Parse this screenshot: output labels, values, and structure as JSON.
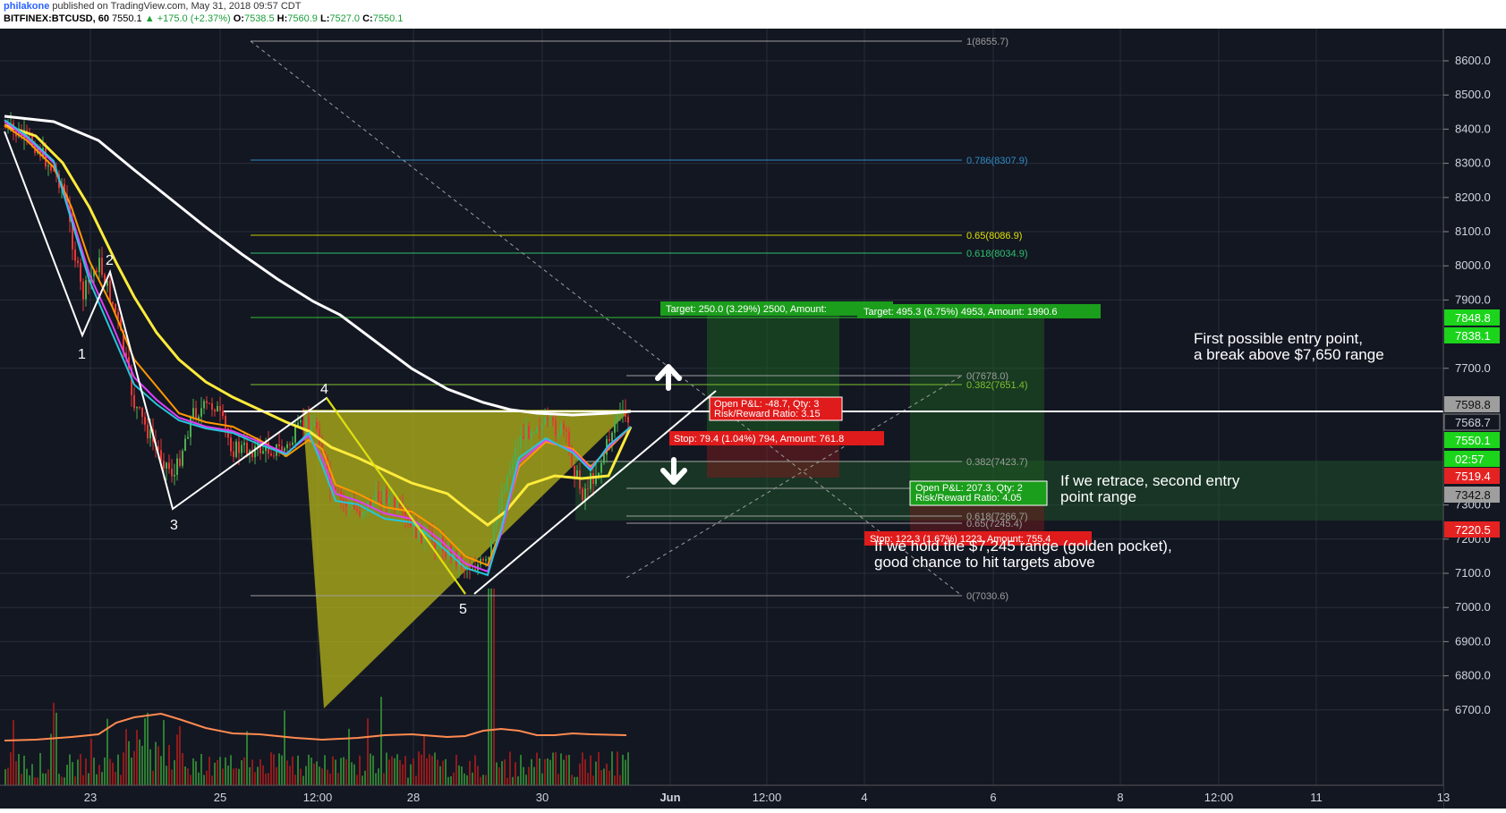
{
  "header": {
    "author": "philakone",
    "published": "published on TradingView.com, May 31, 2018 09:57 CDT",
    "symbol": "BITFINEX:BTCUSD, 60",
    "last": "7550.1",
    "change": "+175.0 (+2.37%)",
    "o_label": "O:",
    "o_value": "7538.5",
    "h_label": "H:",
    "h_value": "7560.9",
    "l_label": "L:",
    "l_value": "7527.0",
    "c_label": "C:",
    "c_value": "7550.1"
  },
  "colors": {
    "background": "#131722",
    "axis_bg": "#131722",
    "grid": "#2a2e39",
    "up": "#4caf50",
    "down": "#e53935",
    "ma_white": "#ffffff",
    "ma_yellow": "#ffeb3b",
    "triangle_fill": "#b5b51a",
    "target_bg": "#1b9e1b",
    "stop_bg": "#e01b1b",
    "price_green": "#1bd41b",
    "price_red": "#e52222"
  },
  "axis": {
    "y_ticks": [
      "8600.0",
      "8500.0",
      "8400.0",
      "8300.0",
      "8200.0",
      "8100.0",
      "8000.0",
      "7900.0",
      "7700.0",
      "7300.0",
      "7200.0",
      "7100.0",
      "7000.0",
      "6900.0",
      "6800.0",
      "6700.0"
    ],
    "x_ticks": [
      "23",
      "25",
      "12:00",
      "28",
      "30",
      "Jun",
      "12:00",
      "4",
      "6",
      "8",
      "12:00",
      "11",
      "13"
    ],
    "price_tags": [
      {
        "label": "7848.8",
        "kind": "green"
      },
      {
        "label": "7838.1",
        "kind": "green"
      },
      {
        "label": "7598.8",
        "kind": "grey"
      },
      {
        "label": "7568.7",
        "kind": "dark"
      },
      {
        "label": "7550.1",
        "kind": "green"
      },
      {
        "label": "02:57",
        "kind": "green"
      },
      {
        "label": "7519.4",
        "kind": "red"
      },
      {
        "label": "7342.8",
        "kind": "grey"
      },
      {
        "label": "7220.5",
        "kind": "red"
      }
    ]
  },
  "fib": {
    "f1": "1(8655.7)",
    "f786": "0.786(8307.9)",
    "f65": "0.65(8086.9)",
    "f618": "0.618(8034.9)",
    "f0_top": "0(7678.0)",
    "f382_top": "0.382(7651.4)",
    "f382_mid": "0.382(7423.7)",
    "f618_mid": "0.618(7266.7)",
    "f65_mid": "0.65(7245.4)",
    "f0_bottom": "0(7030.6)"
  },
  "waves": [
    "1",
    "2",
    "3",
    "4",
    "5"
  ],
  "positions": {
    "target1": "Target: 250.0 (3.29%) 2500, Amount:",
    "target2": "Target: 495.3 (6.75%) 4953, Amount: 1990.6",
    "pnl1_line1": "Open P&L: -48.7, Qty: 3",
    "pnl1_line2": "Risk/Reward Ratio: 3.15",
    "stop1": "Stop: 79.4 (1.04%) 794, Amount: 761.8",
    "pnl2_line1": "Open P&L: 207.3, Qty: 2",
    "pnl2_line2": "Risk/Reward Ratio: 4.05",
    "stop2": "Stop: 122.3 (1.67%) 1223, Amount: 755.4"
  },
  "notes": {
    "entry1_line1": "First possible entry point,",
    "entry1_line2": "a break above $7,650 range",
    "entry2_line1": "If we retrace, second entry",
    "entry2_line2": "point range",
    "pocket_line1": "If we hold the $7,245 range (golden pocket),",
    "pocket_line2": "good chance to hit targets above"
  }
}
